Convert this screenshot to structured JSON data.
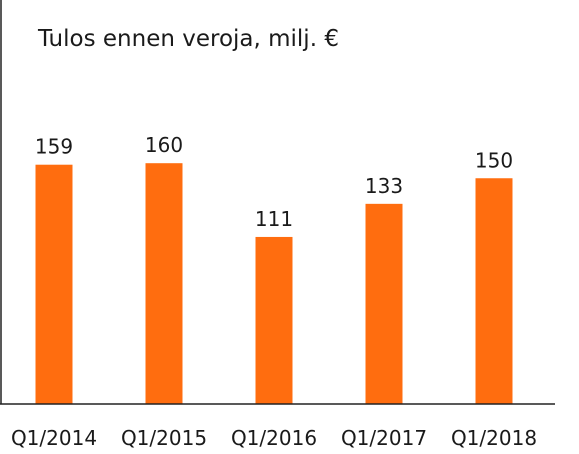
{
  "chart_data": {
    "type": "bar",
    "title": "Tulos ennen veroja, milj. €",
    "xlabel": "",
    "ylabel": "",
    "categories": [
      "Q1/2014",
      "Q1/2015",
      "Q1/2016",
      "Q1/2017",
      "Q1/2018"
    ],
    "values": [
      159,
      160,
      111,
      133,
      150
    ],
    "ylim": [
      0,
      200
    ],
    "grid": false,
    "legend": "none",
    "bar_color": "#ff6d0f",
    "axis_color": "#222222"
  }
}
